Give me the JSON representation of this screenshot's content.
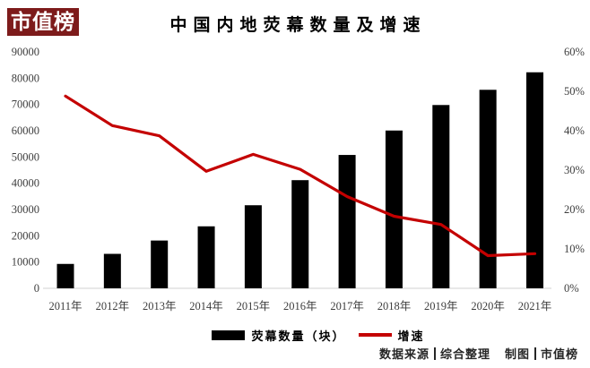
{
  "branding": {
    "logo_text": "市值榜"
  },
  "chart_data": {
    "type": "bar",
    "subtype": "bar+line combo, dual axis",
    "title": "中国内地荧幕数量及增速",
    "categories": [
      "2011年",
      "2012年",
      "2013年",
      "2014年",
      "2015年",
      "2016年",
      "2017年",
      "2018年",
      "2019年",
      "2020年",
      "2021年"
    ],
    "series": [
      {
        "name": "荧幕数量（块）",
        "type": "bar",
        "axis": "left",
        "color": "#000000",
        "values": [
          9286,
          13118,
          18195,
          23600,
          31627,
          41179,
          50776,
          60079,
          69787,
          75581,
          82248
        ]
      },
      {
        "name": "增速",
        "type": "line",
        "axis": "right",
        "color": "#c40000",
        "values_percent": [
          48.8,
          41.3,
          38.7,
          29.7,
          34.0,
          30.2,
          23.3,
          18.3,
          16.2,
          8.3,
          8.8
        ]
      }
    ],
    "left_axis": {
      "min": 0,
      "max": 90000,
      "tick_labels_top_down": [
        "90000",
        "80000",
        "70000",
        "60000",
        "50000",
        "40000",
        "30000",
        "20000",
        "10000",
        "0"
      ]
    },
    "right_axis": {
      "min": 0,
      "max": 60,
      "tick_labels_top_down": [
        "60%",
        "50%",
        "40%",
        "30%",
        "20%",
        "10%",
        "0%"
      ]
    },
    "grid": "off",
    "legend_position": "bottom"
  },
  "legend": {
    "bar_label": "荧幕数量（块）",
    "line_label": "增速"
  },
  "footer": {
    "source_label": "数据来源",
    "source_value": "综合整理",
    "credit_label": "制图",
    "credit_value": "市值榜"
  }
}
